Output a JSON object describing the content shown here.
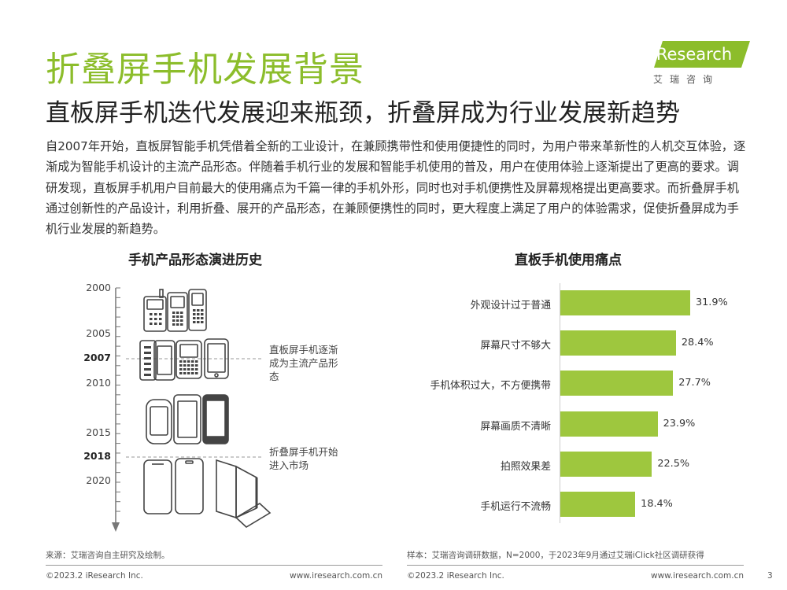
{
  "header": {
    "title": "折叠屏手机发展背景",
    "subtitle": "直板屏手机迭代发展迎来瓶颈，折叠屏成为行业发展新趋势",
    "logo_brand": "iResearch",
    "logo_cn": "艾瑞咨询",
    "brand_color": "#8cbd2b"
  },
  "intro": "自2007年开始，直板屏智能手机凭借着全新的工业设计，在兼顾携带性和使用便捷性的同时，为用户带来革新性的人机交互体验，逐渐成为智能手机设计的主流产品形态。伴随着手机行业的发展和智能手机使用的普及，用户在使用体验上逐渐提出了更高的要求。调研发现，直板屏手机用户目前最大的使用痛点为千篇一律的手机外形，同时也对手机便携性及屏幕规格提出更高要求。而折叠屏手机通过创新性的产品设计，利用折叠、展开的产品形态，在兼顾便携性的同时，更大程度上满足了用户的体验需求，促使折叠屏成为手机行业发展的新趋势。",
  "timeline": {
    "title": "手机产品形态演进历史",
    "years": [
      "2000",
      "2005",
      "2007",
      "2010",
      "2015",
      "2018",
      "2020"
    ],
    "note_2007": "直板屏手机逐渐成为主流产品形态",
    "note_2018": "折叠屏手机开始进入市场",
    "icons": [
      "feature-phones-icon",
      "early-smartphones-icon",
      "touchscreen-phones-icon",
      "foldable-phones-icon"
    ]
  },
  "chart_data": {
    "type": "bar",
    "orientation": "horizontal",
    "title": "直板手机使用痛点",
    "categories": [
      "外观设计过于普通",
      "屏幕尺寸不够大",
      "手机体积过大，不方便携带",
      "屏幕画质不清晰",
      "拍照效果差",
      "手机运行不流畅"
    ],
    "values": [
      31.9,
      28.4,
      27.7,
      23.9,
      22.5,
      18.4
    ],
    "value_labels": [
      "31.9%",
      "28.4%",
      "27.7%",
      "23.9%",
      "22.5%",
      "18.4%"
    ],
    "unit": "%",
    "bar_color": "#9ec73e",
    "xlim": [
      0,
      31.9
    ]
  },
  "footer": {
    "source_left": "来源：艾瑞咨询自主研究及绘制。",
    "source_right": "样本：艾瑞咨询调研数据，N=2000，于2023年9月通过艾瑞iClick社区调研获得",
    "copyright_left": "©2023.2 iResearch Inc.",
    "url_left": "www.iresearch.com.cn",
    "copyright_right": "©2023.2 iResearch Inc.",
    "url_right": "www.iresearch.com.cn",
    "page": "3"
  }
}
